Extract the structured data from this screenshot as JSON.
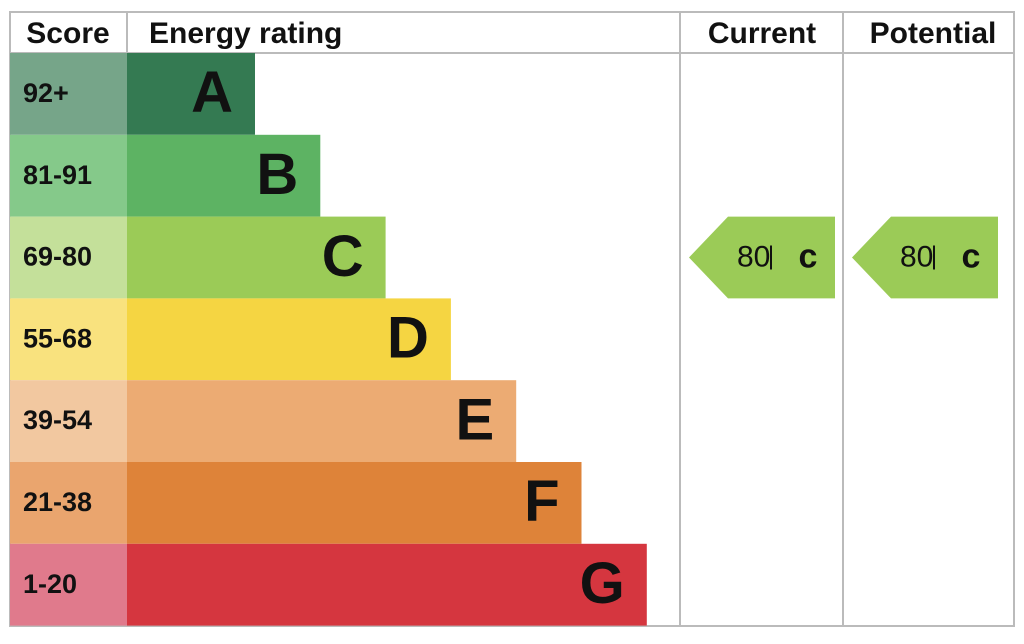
{
  "header": {
    "score": "Score",
    "rating": "Energy rating",
    "current": "Current",
    "potential": "Potential"
  },
  "rows": [
    {
      "score": "92+",
      "letter": "A",
      "score_color": "#76a589",
      "color": "#347a52"
    },
    {
      "score": "81-91",
      "letter": "B",
      "score_color": "#85c98a",
      "color": "#5db363"
    },
    {
      "score": "69-80",
      "letter": "C",
      "score_color": "#c4e09a",
      "color": "#9bcb57"
    },
    {
      "score": "55-68",
      "letter": "D",
      "score_color": "#f9e27e",
      "color": "#f5d542"
    },
    {
      "score": "39-54",
      "letter": "E",
      "score_color": "#f2c8a0",
      "color": "#ecab73"
    },
    {
      "score": "21-38",
      "letter": "F",
      "score_color": "#eaa56e",
      "color": "#de8339"
    },
    {
      "score": "1-20",
      "letter": "G",
      "score_color": "#e07a8c",
      "color": "#d5363f"
    }
  ],
  "current": {
    "value": 80,
    "rating": "c"
  },
  "potential": {
    "value": 80,
    "rating": "c"
  }
}
